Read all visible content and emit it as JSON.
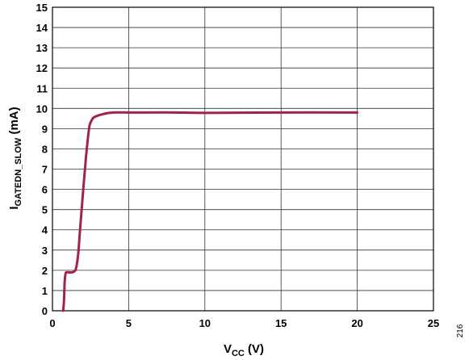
{
  "chart_data": {
    "type": "line",
    "title": "",
    "xlabel": {
      "main": "V",
      "sub": "CC",
      "suffix": " (V)"
    },
    "ylabel": {
      "main": "I",
      "sub": "GATEDN_SLOW",
      "suffix": " (mA)"
    },
    "xlim": [
      0,
      25
    ],
    "ylim": [
      0,
      15
    ],
    "xticks": [
      0,
      5,
      10,
      15,
      20,
      25
    ],
    "yticks": [
      0,
      1,
      2,
      3,
      4,
      5,
      6,
      7,
      8,
      9,
      10,
      11,
      12,
      13,
      14,
      15
    ],
    "grid": true,
    "legend": "none",
    "series": [
      {
        "color": "#a3204f",
        "x": [
          0.7,
          0.75,
          0.8,
          0.85,
          0.9,
          1.0,
          1.1,
          1.3,
          1.5,
          1.6,
          1.7,
          1.8,
          2.0,
          2.2,
          2.4,
          2.5,
          2.6,
          2.7,
          3.0,
          3.5,
          4.0,
          5.0,
          6.0,
          8.0,
          10.0,
          15.0,
          20.0
        ],
        "y": [
          0.0,
          0.4,
          1.4,
          1.8,
          1.9,
          1.9,
          1.9,
          1.9,
          2.0,
          2.3,
          2.9,
          3.9,
          5.8,
          7.6,
          9.0,
          9.3,
          9.45,
          9.55,
          9.65,
          9.75,
          9.8,
          9.8,
          9.8,
          9.8,
          9.78,
          9.8,
          9.8
        ]
      }
    ]
  },
  "figure_id": "216"
}
